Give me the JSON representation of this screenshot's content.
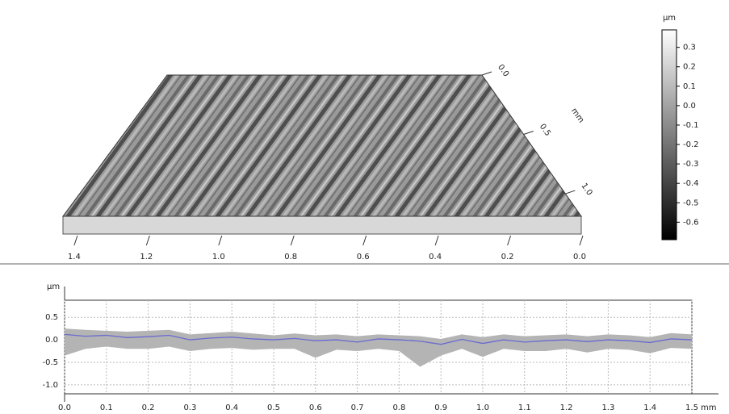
{
  "chart_data": [
    {
      "type": "surface3d",
      "colorbar": {
        "unit": "µm",
        "range": [
          -0.69,
          0.39
        ],
        "ticks": [
          0.3,
          0.2,
          0.1,
          {
            "value": 0,
            "label": "0.0"
          },
          -0.1,
          -0.2,
          -0.3,
          -0.4,
          -0.5,
          -0.6
        ]
      },
      "xlim": [
        0,
        1.44
      ],
      "xticks": [
        1.4,
        1.2,
        {
          "value": 1,
          "label": "1.0"
        },
        0.8,
        0.6,
        0.4,
        0.2,
        {
          "value": 0,
          "label": "0.0"
        }
      ],
      "ylim": [
        0,
        1.19
      ],
      "yticks": [
        {
          "value": 0,
          "label": "0.0"
        },
        0.5,
        {
          "value": 1,
          "label": "1.0"
        }
      ],
      "y_unit": "mm"
    },
    {
      "type": "line",
      "y_label": "µm",
      "x_label": "mm",
      "xlim": [
        0,
        1.5
      ],
      "ylim": [
        -1.2,
        0.88
      ],
      "xticks": [
        {
          "value": 0,
          "label": "0.0"
        },
        0.1,
        0.2,
        0.3,
        0.4,
        0.5,
        0.6,
        0.7,
        0.8,
        0.9,
        {
          "value": 1,
          "label": "1.0"
        },
        1.1,
        1.2,
        1.3,
        1.4,
        1.5
      ],
      "yticks": [
        0.5,
        {
          "value": 0,
          "label": "0.0"
        },
        -0.5,
        {
          "value": -1,
          "label": "-1.0"
        }
      ],
      "grid": true,
      "x": [
        0,
        0.05,
        0.1,
        0.15,
        0.2,
        0.25,
        0.3,
        0.35,
        0.4,
        0.45,
        0.5,
        0.55,
        0.6,
        0.65,
        0.7,
        0.75,
        0.8,
        0.85,
        0.9,
        0.95,
        1,
        1.05,
        1.1,
        1.15,
        1.2,
        1.25,
        1.3,
        1.35,
        1.4,
        1.45,
        1.5
      ],
      "profile": {
        "color": "#6a6ad0",
        "values": [
          0.12,
          0.08,
          0.1,
          0.05,
          0.07,
          0.1,
          0,
          0.04,
          0.06,
          0.02,
          0,
          0.03,
          -0.02,
          0,
          -0.05,
          0.02,
          0,
          -0.03,
          -0.1,
          0.01,
          -0.08,
          0,
          -0.05,
          -0.02,
          0,
          -0.04,
          0,
          -0.02,
          -0.06,
          0.02,
          0
        ]
      },
      "band": {
        "color": "#b4b4b4",
        "upper": [
          0.25,
          0.22,
          0.2,
          0.18,
          0.2,
          0.22,
          0.12,
          0.15,
          0.18,
          0.14,
          0.1,
          0.14,
          0.1,
          0.12,
          0.08,
          0.12,
          0.1,
          0.08,
          0.02,
          0.12,
          0.06,
          0.12,
          0.08,
          0.1,
          0.12,
          0.08,
          0.12,
          0.1,
          0.06,
          0.15,
          0.12
        ],
        "lower": [
          -0.35,
          -0.2,
          -0.15,
          -0.2,
          -0.2,
          -0.15,
          -0.25,
          -0.2,
          -0.18,
          -0.22,
          -0.2,
          -0.2,
          -0.4,
          -0.22,
          -0.25,
          -0.2,
          -0.25,
          -0.6,
          -0.35,
          -0.2,
          -0.38,
          -0.2,
          -0.25,
          -0.25,
          -0.2,
          -0.28,
          -0.2,
          -0.22,
          -0.3,
          -0.18,
          -0.2
        ]
      }
    }
  ]
}
